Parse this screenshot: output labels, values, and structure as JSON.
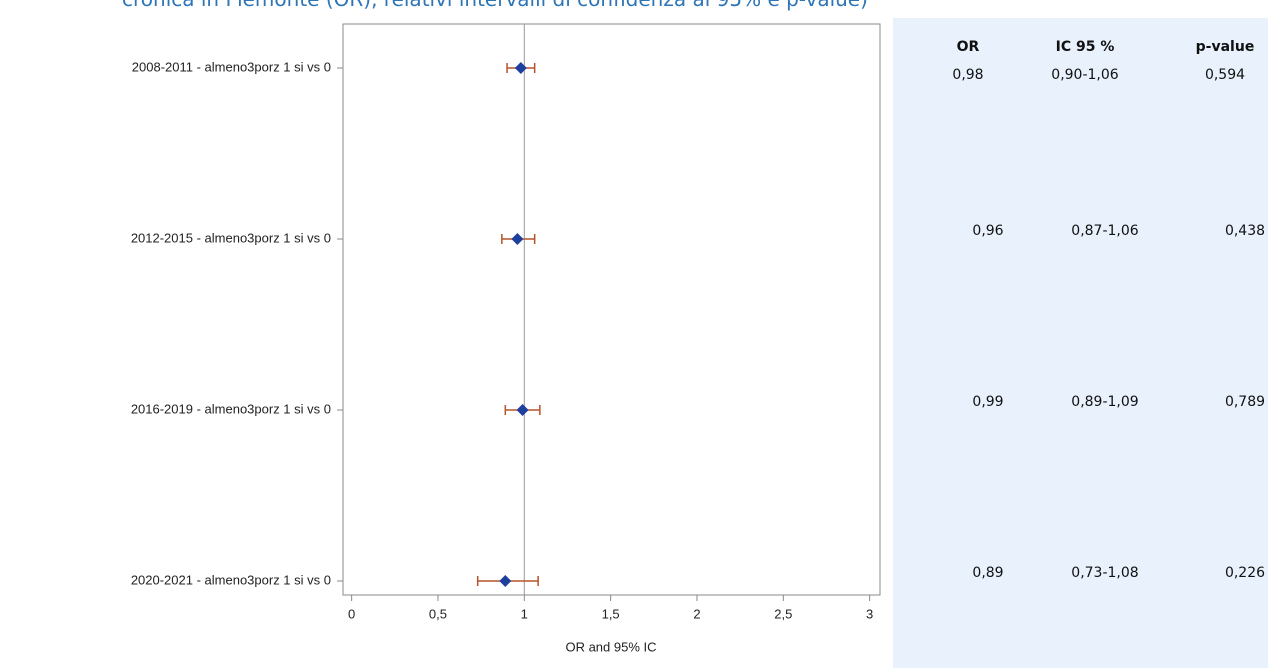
{
  "chart_data": {
    "type": "forest",
    "title": "cronica in Piemonte (OR), relativi intervalli di confidenza al 95% e p-value)",
    "categories": [
      "2008-2011 - almeno3porz 1 si vs 0",
      "2012-2015 - almeno3porz 1 si vs 0",
      "2016-2019 - almeno3porz 1 si vs 0",
      "2020-2021 - almeno3porz 1 si vs 0"
    ],
    "values": [
      0.98,
      0.96,
      0.99,
      0.89
    ],
    "value_labels": [
      "0,98",
      "0,96",
      "0,99",
      "0,89"
    ],
    "lower": [
      0.9,
      0.87,
      0.89,
      0.73
    ],
    "upper": [
      1.06,
      1.06,
      1.09,
      1.08
    ],
    "ci_labels": [
      "0,90-1,06",
      "0,87-1,06",
      "0,89-1,09",
      "0,73-1,08"
    ],
    "p_values": [
      "0,594",
      "0,438",
      "0,789",
      "0,226"
    ],
    "table_headers": [
      "OR",
      "IC 95 %",
      "p-value"
    ],
    "x_label": "OR and 95% IC",
    "xlim": [
      -0.05,
      3.06
    ],
    "xticks": [
      0,
      {
        "value": 0.5,
        "label": "0,5"
      },
      1,
      {
        "value": 1.5,
        "label": "1,5"
      },
      2,
      {
        "value": 2.5,
        "label": "2,5"
      },
      3
    ],
    "reference_line": 1,
    "marker_color": "#1f3f9f",
    "error_color": "#b5532a"
  }
}
